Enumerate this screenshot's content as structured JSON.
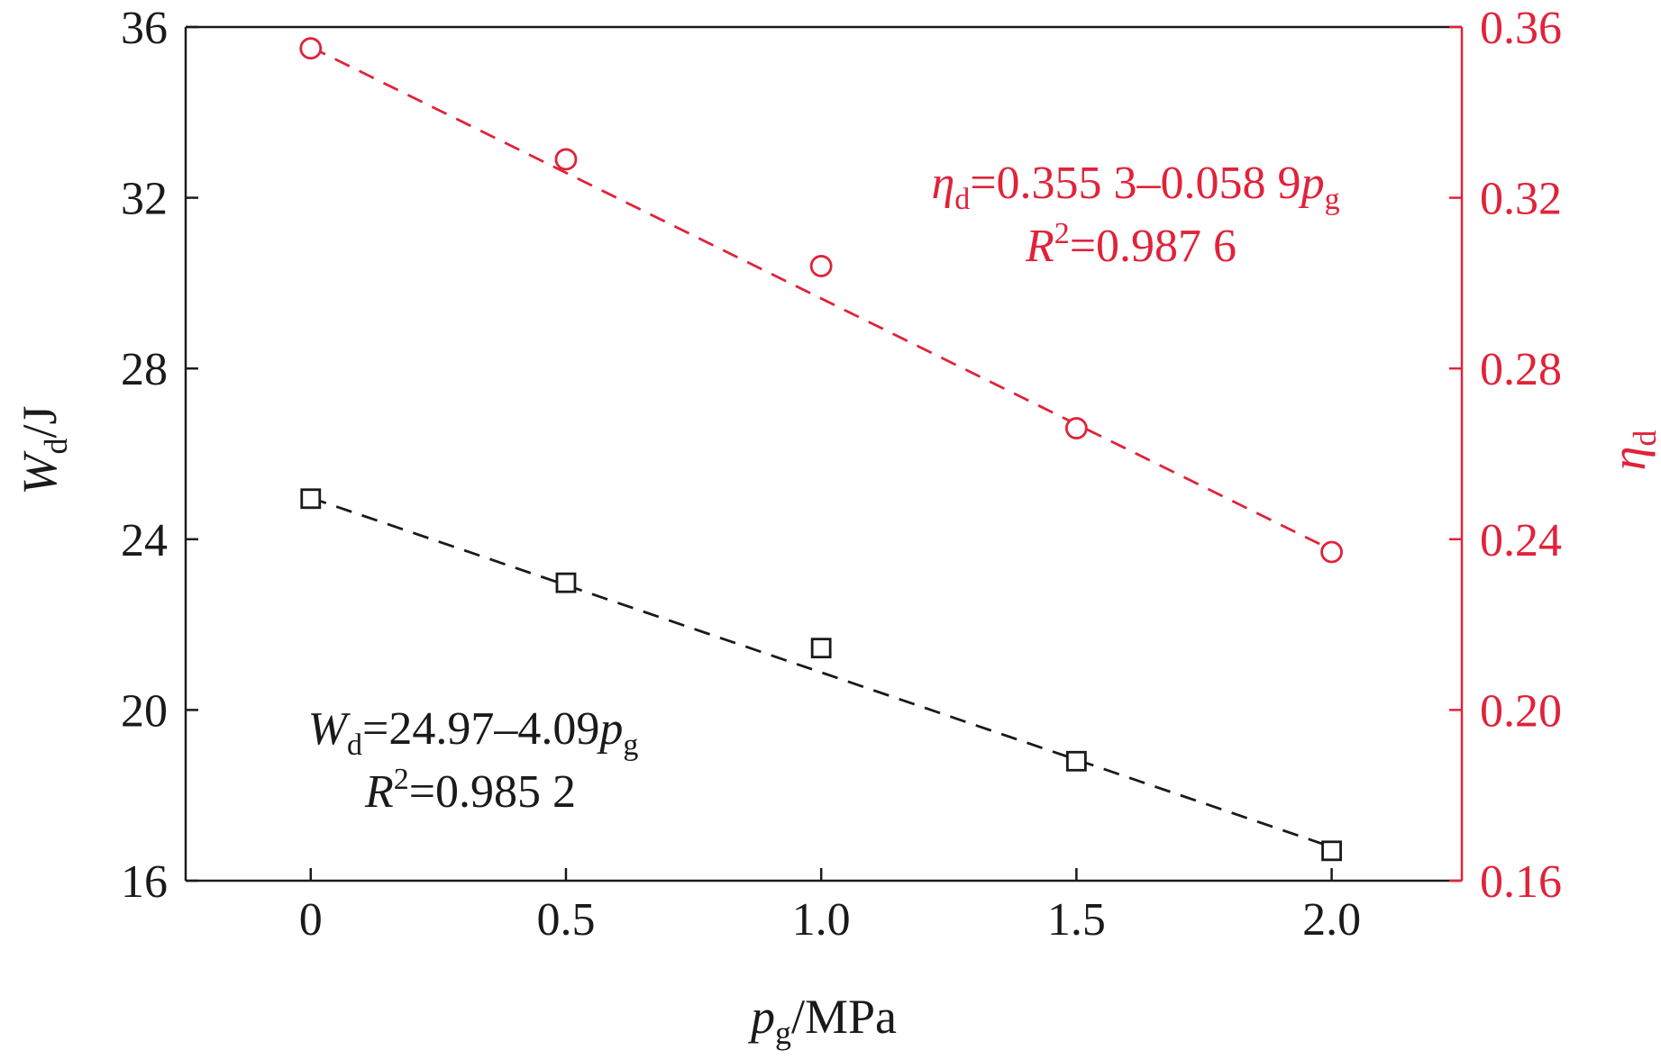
{
  "colors": {
    "left": "#1a1a1a",
    "right": "#e0233a"
  },
  "chart_data": {
    "type": "scatter",
    "xlabel": {
      "main": "p",
      "sub": "g",
      "unit": "/MPa"
    },
    "ylabel_left": {
      "main": "W",
      "sub": "d",
      "unit": "/J"
    },
    "ylabel_right": {
      "main": "η",
      "sub": "d"
    },
    "x_ticks": [
      "0",
      "0.5",
      "1.0",
      "1.5",
      "2.0"
    ],
    "y_left_ticks": [
      "16",
      "20",
      "24",
      "28",
      "32",
      "36"
    ],
    "y_right_ticks": [
      "0.16",
      "0.20",
      "0.24",
      "0.28",
      "0.32",
      "0.36"
    ],
    "x_tick_values": [
      0,
      0.5,
      1.0,
      1.5,
      2.0
    ],
    "y_left_tick_values": [
      16,
      20,
      24,
      28,
      32,
      36
    ],
    "y_right_tick_values": [
      0.16,
      0.2,
      0.24,
      0.28,
      0.32,
      0.36
    ],
    "xlim": [
      -0.245,
      2.255
    ],
    "ylim_left": [
      16,
      36
    ],
    "ylim_right": [
      0.16,
      0.36
    ],
    "series": [
      {
        "axis": "left",
        "marker": "square",
        "x": [
          0,
          0.5,
          1.0,
          1.5,
          2.0
        ],
        "y": [
          24.95,
          22.98,
          21.45,
          18.8,
          16.7
        ],
        "fit": {
          "intercept": 24.97,
          "slope": -4.09
        },
        "equation": {
          "main": "W",
          "sub": "d",
          "rest": "=24.97–4.09",
          "var": "p",
          "var_sub": "g"
        },
        "r2": {
          "main": "R",
          "sup": "2",
          "rest": "=0.985 2"
        }
      },
      {
        "axis": "right",
        "marker": "circle",
        "x": [
          0,
          0.5,
          1.0,
          1.5,
          2.0
        ],
        "y": [
          0.355,
          0.329,
          0.304,
          0.266,
          0.237
        ],
        "fit": {
          "intercept": 0.3553,
          "slope": -0.0589
        },
        "equation": {
          "main": "η",
          "sub": "d",
          "rest": "=0.355 3–0.058 9",
          "var": "p",
          "var_sub": "g"
        },
        "r2": {
          "main": "R",
          "sup": "2",
          "rest": "=0.987 6"
        }
      }
    ]
  }
}
